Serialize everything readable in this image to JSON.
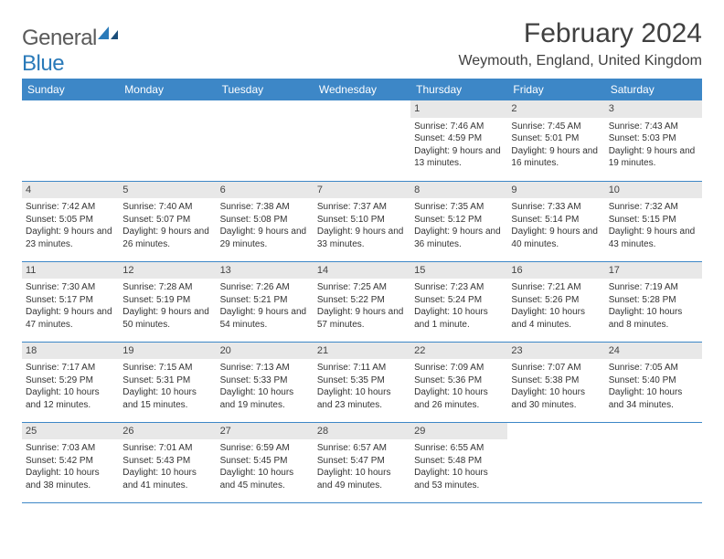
{
  "logo": {
    "word1": "General",
    "word2": "Blue"
  },
  "title": "February 2024",
  "location": "Weymouth, England, United Kingdom",
  "colors": {
    "header_bg": "#3d87c7",
    "header_text": "#ffffff",
    "daynum_bg": "#e8e8e8",
    "rule": "#3d87c7",
    "text": "#333333",
    "logo_gray": "#5a5a5a",
    "logo_blue": "#2a7ab9"
  },
  "day_headers": [
    "Sunday",
    "Monday",
    "Tuesday",
    "Wednesday",
    "Thursday",
    "Friday",
    "Saturday"
  ],
  "weeks": [
    [
      {
        "n": "",
        "sr": "",
        "ss": "",
        "dl": ""
      },
      {
        "n": "",
        "sr": "",
        "ss": "",
        "dl": ""
      },
      {
        "n": "",
        "sr": "",
        "ss": "",
        "dl": ""
      },
      {
        "n": "",
        "sr": "",
        "ss": "",
        "dl": ""
      },
      {
        "n": "1",
        "sr": "Sunrise: 7:46 AM",
        "ss": "Sunset: 4:59 PM",
        "dl": "Daylight: 9 hours and 13 minutes."
      },
      {
        "n": "2",
        "sr": "Sunrise: 7:45 AM",
        "ss": "Sunset: 5:01 PM",
        "dl": "Daylight: 9 hours and 16 minutes."
      },
      {
        "n": "3",
        "sr": "Sunrise: 7:43 AM",
        "ss": "Sunset: 5:03 PM",
        "dl": "Daylight: 9 hours and 19 minutes."
      }
    ],
    [
      {
        "n": "4",
        "sr": "Sunrise: 7:42 AM",
        "ss": "Sunset: 5:05 PM",
        "dl": "Daylight: 9 hours and 23 minutes."
      },
      {
        "n": "5",
        "sr": "Sunrise: 7:40 AM",
        "ss": "Sunset: 5:07 PM",
        "dl": "Daylight: 9 hours and 26 minutes."
      },
      {
        "n": "6",
        "sr": "Sunrise: 7:38 AM",
        "ss": "Sunset: 5:08 PM",
        "dl": "Daylight: 9 hours and 29 minutes."
      },
      {
        "n": "7",
        "sr": "Sunrise: 7:37 AM",
        "ss": "Sunset: 5:10 PM",
        "dl": "Daylight: 9 hours and 33 minutes."
      },
      {
        "n": "8",
        "sr": "Sunrise: 7:35 AM",
        "ss": "Sunset: 5:12 PM",
        "dl": "Daylight: 9 hours and 36 minutes."
      },
      {
        "n": "9",
        "sr": "Sunrise: 7:33 AM",
        "ss": "Sunset: 5:14 PM",
        "dl": "Daylight: 9 hours and 40 minutes."
      },
      {
        "n": "10",
        "sr": "Sunrise: 7:32 AM",
        "ss": "Sunset: 5:15 PM",
        "dl": "Daylight: 9 hours and 43 minutes."
      }
    ],
    [
      {
        "n": "11",
        "sr": "Sunrise: 7:30 AM",
        "ss": "Sunset: 5:17 PM",
        "dl": "Daylight: 9 hours and 47 minutes."
      },
      {
        "n": "12",
        "sr": "Sunrise: 7:28 AM",
        "ss": "Sunset: 5:19 PM",
        "dl": "Daylight: 9 hours and 50 minutes."
      },
      {
        "n": "13",
        "sr": "Sunrise: 7:26 AM",
        "ss": "Sunset: 5:21 PM",
        "dl": "Daylight: 9 hours and 54 minutes."
      },
      {
        "n": "14",
        "sr": "Sunrise: 7:25 AM",
        "ss": "Sunset: 5:22 PM",
        "dl": "Daylight: 9 hours and 57 minutes."
      },
      {
        "n": "15",
        "sr": "Sunrise: 7:23 AM",
        "ss": "Sunset: 5:24 PM",
        "dl": "Daylight: 10 hours and 1 minute."
      },
      {
        "n": "16",
        "sr": "Sunrise: 7:21 AM",
        "ss": "Sunset: 5:26 PM",
        "dl": "Daylight: 10 hours and 4 minutes."
      },
      {
        "n": "17",
        "sr": "Sunrise: 7:19 AM",
        "ss": "Sunset: 5:28 PM",
        "dl": "Daylight: 10 hours and 8 minutes."
      }
    ],
    [
      {
        "n": "18",
        "sr": "Sunrise: 7:17 AM",
        "ss": "Sunset: 5:29 PM",
        "dl": "Daylight: 10 hours and 12 minutes."
      },
      {
        "n": "19",
        "sr": "Sunrise: 7:15 AM",
        "ss": "Sunset: 5:31 PM",
        "dl": "Daylight: 10 hours and 15 minutes."
      },
      {
        "n": "20",
        "sr": "Sunrise: 7:13 AM",
        "ss": "Sunset: 5:33 PM",
        "dl": "Daylight: 10 hours and 19 minutes."
      },
      {
        "n": "21",
        "sr": "Sunrise: 7:11 AM",
        "ss": "Sunset: 5:35 PM",
        "dl": "Daylight: 10 hours and 23 minutes."
      },
      {
        "n": "22",
        "sr": "Sunrise: 7:09 AM",
        "ss": "Sunset: 5:36 PM",
        "dl": "Daylight: 10 hours and 26 minutes."
      },
      {
        "n": "23",
        "sr": "Sunrise: 7:07 AM",
        "ss": "Sunset: 5:38 PM",
        "dl": "Daylight: 10 hours and 30 minutes."
      },
      {
        "n": "24",
        "sr": "Sunrise: 7:05 AM",
        "ss": "Sunset: 5:40 PM",
        "dl": "Daylight: 10 hours and 34 minutes."
      }
    ],
    [
      {
        "n": "25",
        "sr": "Sunrise: 7:03 AM",
        "ss": "Sunset: 5:42 PM",
        "dl": "Daylight: 10 hours and 38 minutes."
      },
      {
        "n": "26",
        "sr": "Sunrise: 7:01 AM",
        "ss": "Sunset: 5:43 PM",
        "dl": "Daylight: 10 hours and 41 minutes."
      },
      {
        "n": "27",
        "sr": "Sunrise: 6:59 AM",
        "ss": "Sunset: 5:45 PM",
        "dl": "Daylight: 10 hours and 45 minutes."
      },
      {
        "n": "28",
        "sr": "Sunrise: 6:57 AM",
        "ss": "Sunset: 5:47 PM",
        "dl": "Daylight: 10 hours and 49 minutes."
      },
      {
        "n": "29",
        "sr": "Sunrise: 6:55 AM",
        "ss": "Sunset: 5:48 PM",
        "dl": "Daylight: 10 hours and 53 minutes."
      },
      {
        "n": "",
        "sr": "",
        "ss": "",
        "dl": ""
      },
      {
        "n": "",
        "sr": "",
        "ss": "",
        "dl": ""
      }
    ]
  ]
}
